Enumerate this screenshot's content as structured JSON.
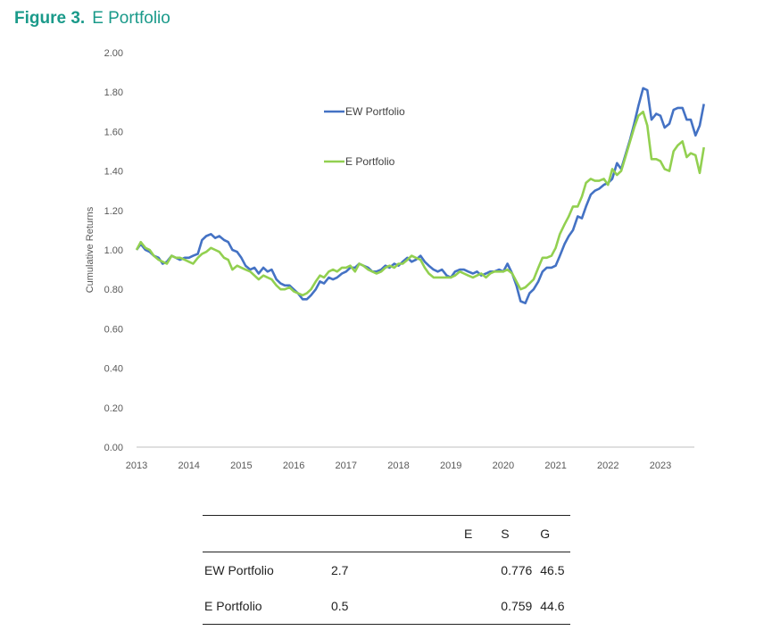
{
  "figure": {
    "number": "Figure 3.",
    "title": "E Portfolio"
  },
  "chart_data": {
    "type": "line",
    "ylabel": "Cumulative Returns",
    "xlabel": "",
    "ylim": [
      0,
      2.0
    ],
    "xlim": [
      2013,
      2023.67
    ],
    "yticks": [
      "0.00",
      "0.20",
      "0.40",
      "0.60",
      "0.80",
      "1.00",
      "1.20",
      "1.40",
      "1.60",
      "1.80",
      "2.00"
    ],
    "xticks": [
      "2013",
      "2014",
      "2015",
      "2016",
      "2017",
      "2018",
      "2019",
      "2020",
      "2021",
      "2022",
      "2023"
    ],
    "legend_position": "upper-middle",
    "colors": {
      "EW Portfolio": "#4472c4",
      "E Portfolio": "#92d050"
    },
    "series": [
      {
        "name": "EW Portfolio",
        "color": "#4472c4",
        "points": [
          [
            2013,
            1.0
          ],
          [
            2013.08,
            1.03
          ],
          [
            2013.17,
            1.0
          ],
          [
            2013.25,
            0.99
          ],
          [
            2013.33,
            0.97
          ],
          [
            2013.42,
            0.96
          ],
          [
            2013.5,
            0.93
          ],
          [
            2013.58,
            0.94
          ],
          [
            2013.67,
            0.97
          ],
          [
            2013.75,
            0.96
          ],
          [
            2013.83,
            0.95
          ],
          [
            2013.92,
            0.96
          ],
          [
            2014,
            0.96
          ],
          [
            2014.08,
            0.97
          ],
          [
            2014.17,
            0.98
          ],
          [
            2014.25,
            1.05
          ],
          [
            2014.33,
            1.07
          ],
          [
            2014.42,
            1.08
          ],
          [
            2014.5,
            1.06
          ],
          [
            2014.58,
            1.07
          ],
          [
            2014.67,
            1.05
          ],
          [
            2014.75,
            1.04
          ],
          [
            2014.83,
            1.0
          ],
          [
            2014.92,
            0.99
          ],
          [
            2015,
            0.96
          ],
          [
            2015.08,
            0.92
          ],
          [
            2015.17,
            0.9
          ],
          [
            2015.25,
            0.91
          ],
          [
            2015.33,
            0.88
          ],
          [
            2015.42,
            0.91
          ],
          [
            2015.5,
            0.89
          ],
          [
            2015.58,
            0.9
          ],
          [
            2015.67,
            0.85
          ],
          [
            2015.75,
            0.83
          ],
          [
            2015.83,
            0.82
          ],
          [
            2015.92,
            0.82
          ],
          [
            2016,
            0.8
          ],
          [
            2016.08,
            0.78
          ],
          [
            2016.17,
            0.75
          ],
          [
            2016.25,
            0.75
          ],
          [
            2016.33,
            0.77
          ],
          [
            2016.42,
            0.8
          ],
          [
            2016.5,
            0.84
          ],
          [
            2016.58,
            0.83
          ],
          [
            2016.67,
            0.86
          ],
          [
            2016.75,
            0.85
          ],
          [
            2016.83,
            0.86
          ],
          [
            2016.92,
            0.88
          ],
          [
            2017,
            0.89
          ],
          [
            2017.08,
            0.91
          ],
          [
            2017.17,
            0.91
          ],
          [
            2017.25,
            0.93
          ],
          [
            2017.33,
            0.92
          ],
          [
            2017.42,
            0.91
          ],
          [
            2017.5,
            0.89
          ],
          [
            2017.58,
            0.89
          ],
          [
            2017.67,
            0.9
          ],
          [
            2017.75,
            0.92
          ],
          [
            2017.83,
            0.91
          ],
          [
            2017.92,
            0.93
          ],
          [
            2018,
            0.92
          ],
          [
            2018.08,
            0.94
          ],
          [
            2018.17,
            0.96
          ],
          [
            2018.25,
            0.94
          ],
          [
            2018.33,
            0.95
          ],
          [
            2018.42,
            0.97
          ],
          [
            2018.5,
            0.94
          ],
          [
            2018.58,
            0.92
          ],
          [
            2018.67,
            0.9
          ],
          [
            2018.75,
            0.89
          ],
          [
            2018.83,
            0.9
          ],
          [
            2018.92,
            0.87
          ],
          [
            2019,
            0.86
          ],
          [
            2019.08,
            0.89
          ],
          [
            2019.17,
            0.9
          ],
          [
            2019.25,
            0.9
          ],
          [
            2019.33,
            0.89
          ],
          [
            2019.42,
            0.88
          ],
          [
            2019.5,
            0.89
          ],
          [
            2019.58,
            0.87
          ],
          [
            2019.67,
            0.88
          ],
          [
            2019.75,
            0.89
          ],
          [
            2019.83,
            0.89
          ],
          [
            2019.92,
            0.9
          ],
          [
            2020,
            0.89
          ],
          [
            2020.08,
            0.93
          ],
          [
            2020.17,
            0.88
          ],
          [
            2020.25,
            0.82
          ],
          [
            2020.33,
            0.74
          ],
          [
            2020.42,
            0.73
          ],
          [
            2020.5,
            0.78
          ],
          [
            2020.58,
            0.8
          ],
          [
            2020.67,
            0.84
          ],
          [
            2020.75,
            0.89
          ],
          [
            2020.83,
            0.91
          ],
          [
            2020.92,
            0.91
          ],
          [
            2021,
            0.92
          ],
          [
            2021.08,
            0.97
          ],
          [
            2021.17,
            1.03
          ],
          [
            2021.25,
            1.07
          ],
          [
            2021.33,
            1.1
          ],
          [
            2021.42,
            1.17
          ],
          [
            2021.5,
            1.16
          ],
          [
            2021.58,
            1.22
          ],
          [
            2021.67,
            1.28
          ],
          [
            2021.75,
            1.3
          ],
          [
            2021.83,
            1.31
          ],
          [
            2021.92,
            1.33
          ],
          [
            2022,
            1.34
          ],
          [
            2022.08,
            1.36
          ],
          [
            2022.17,
            1.44
          ],
          [
            2022.25,
            1.41
          ],
          [
            2022.33,
            1.48
          ],
          [
            2022.42,
            1.56
          ],
          [
            2022.5,
            1.64
          ],
          [
            2022.58,
            1.73
          ],
          [
            2022.67,
            1.82
          ],
          [
            2022.75,
            1.81
          ],
          [
            2022.83,
            1.66
          ],
          [
            2022.92,
            1.69
          ],
          [
            2023,
            1.68
          ],
          [
            2023.08,
            1.62
          ],
          [
            2023.17,
            1.64
          ],
          [
            2023.25,
            1.71
          ],
          [
            2023.33,
            1.72
          ],
          [
            2023.42,
            1.72
          ],
          [
            2023.5,
            1.66
          ],
          [
            2023.58,
            1.66
          ],
          [
            2023.67,
            1.58
          ],
          [
            2023.75,
            1.63
          ],
          [
            2023.83,
            1.74
          ]
        ]
      },
      {
        "name": "E Portfolio",
        "color": "#92d050",
        "points": [
          [
            2013,
            1.0
          ],
          [
            2013.08,
            1.04
          ],
          [
            2013.17,
            1.01
          ],
          [
            2013.25,
            1.0
          ],
          [
            2013.33,
            0.97
          ],
          [
            2013.42,
            0.95
          ],
          [
            2013.5,
            0.94
          ],
          [
            2013.58,
            0.93
          ],
          [
            2013.67,
            0.97
          ],
          [
            2013.75,
            0.96
          ],
          [
            2013.83,
            0.96
          ],
          [
            2013.92,
            0.95
          ],
          [
            2014,
            0.94
          ],
          [
            2014.08,
            0.93
          ],
          [
            2014.17,
            0.96
          ],
          [
            2014.25,
            0.98
          ],
          [
            2014.33,
            0.99
          ],
          [
            2014.42,
            1.01
          ],
          [
            2014.5,
            1.0
          ],
          [
            2014.58,
            0.99
          ],
          [
            2014.67,
            0.96
          ],
          [
            2014.75,
            0.95
          ],
          [
            2014.83,
            0.9
          ],
          [
            2014.92,
            0.92
          ],
          [
            2015,
            0.91
          ],
          [
            2015.08,
            0.9
          ],
          [
            2015.17,
            0.89
          ],
          [
            2015.25,
            0.87
          ],
          [
            2015.33,
            0.85
          ],
          [
            2015.42,
            0.87
          ],
          [
            2015.5,
            0.86
          ],
          [
            2015.58,
            0.85
          ],
          [
            2015.67,
            0.82
          ],
          [
            2015.75,
            0.8
          ],
          [
            2015.83,
            0.8
          ],
          [
            2015.92,
            0.81
          ],
          [
            2016,
            0.79
          ],
          [
            2016.08,
            0.78
          ],
          [
            2016.17,
            0.77
          ],
          [
            2016.25,
            0.78
          ],
          [
            2016.33,
            0.8
          ],
          [
            2016.42,
            0.84
          ],
          [
            2016.5,
            0.87
          ],
          [
            2016.58,
            0.86
          ],
          [
            2016.67,
            0.89
          ],
          [
            2016.75,
            0.9
          ],
          [
            2016.83,
            0.89
          ],
          [
            2016.92,
            0.91
          ],
          [
            2017,
            0.91
          ],
          [
            2017.08,
            0.92
          ],
          [
            2017.17,
            0.89
          ],
          [
            2017.25,
            0.93
          ],
          [
            2017.33,
            0.92
          ],
          [
            2017.42,
            0.9
          ],
          [
            2017.5,
            0.89
          ],
          [
            2017.58,
            0.88
          ],
          [
            2017.67,
            0.89
          ],
          [
            2017.75,
            0.91
          ],
          [
            2017.83,
            0.92
          ],
          [
            2017.92,
            0.91
          ],
          [
            2018,
            0.93
          ],
          [
            2018.08,
            0.93
          ],
          [
            2018.17,
            0.95
          ],
          [
            2018.25,
            0.97
          ],
          [
            2018.33,
            0.96
          ],
          [
            2018.42,
            0.95
          ],
          [
            2018.5,
            0.91
          ],
          [
            2018.58,
            0.88
          ],
          [
            2018.67,
            0.86
          ],
          [
            2018.75,
            0.86
          ],
          [
            2018.83,
            0.86
          ],
          [
            2018.92,
            0.86
          ],
          [
            2019,
            0.86
          ],
          [
            2019.08,
            0.87
          ],
          [
            2019.17,
            0.89
          ],
          [
            2019.25,
            0.88
          ],
          [
            2019.33,
            0.87
          ],
          [
            2019.42,
            0.86
          ],
          [
            2019.5,
            0.87
          ],
          [
            2019.58,
            0.88
          ],
          [
            2019.67,
            0.86
          ],
          [
            2019.75,
            0.88
          ],
          [
            2019.83,
            0.89
          ],
          [
            2019.92,
            0.89
          ],
          [
            2020,
            0.89
          ],
          [
            2020.08,
            0.9
          ],
          [
            2020.17,
            0.88
          ],
          [
            2020.25,
            0.84
          ],
          [
            2020.33,
            0.8
          ],
          [
            2020.42,
            0.81
          ],
          [
            2020.5,
            0.83
          ],
          [
            2020.58,
            0.85
          ],
          [
            2020.67,
            0.91
          ],
          [
            2020.75,
            0.96
          ],
          [
            2020.83,
            0.96
          ],
          [
            2020.92,
            0.97
          ],
          [
            2021,
            1.01
          ],
          [
            2021.08,
            1.08
          ],
          [
            2021.17,
            1.13
          ],
          [
            2021.25,
            1.17
          ],
          [
            2021.33,
            1.22
          ],
          [
            2021.42,
            1.22
          ],
          [
            2021.5,
            1.27
          ],
          [
            2021.58,
            1.34
          ],
          [
            2021.67,
            1.36
          ],
          [
            2021.75,
            1.35
          ],
          [
            2021.83,
            1.35
          ],
          [
            2021.92,
            1.36
          ],
          [
            2022,
            1.33
          ],
          [
            2022.08,
            1.41
          ],
          [
            2022.17,
            1.38
          ],
          [
            2022.25,
            1.4
          ],
          [
            2022.33,
            1.47
          ],
          [
            2022.42,
            1.55
          ],
          [
            2022.5,
            1.62
          ],
          [
            2022.58,
            1.68
          ],
          [
            2022.67,
            1.7
          ],
          [
            2022.75,
            1.63
          ],
          [
            2022.83,
            1.46
          ],
          [
            2022.92,
            1.46
          ],
          [
            2023,
            1.45
          ],
          [
            2023.08,
            1.41
          ],
          [
            2023.17,
            1.4
          ],
          [
            2023.25,
            1.5
          ],
          [
            2023.33,
            1.53
          ],
          [
            2023.42,
            1.55
          ],
          [
            2023.5,
            1.47
          ],
          [
            2023.58,
            1.49
          ],
          [
            2023.67,
            1.48
          ],
          [
            2023.75,
            1.39
          ],
          [
            2023.83,
            1.52
          ]
        ]
      }
    ]
  },
  "table": {
    "headers": [
      "",
      "E",
      "S",
      "G"
    ],
    "rows": [
      [
        "EW Portfolio",
        "2.7",
        "0.776",
        "46.5"
      ],
      [
        "E Portfolio",
        "0.5",
        "0.759",
        "44.6"
      ]
    ]
  }
}
